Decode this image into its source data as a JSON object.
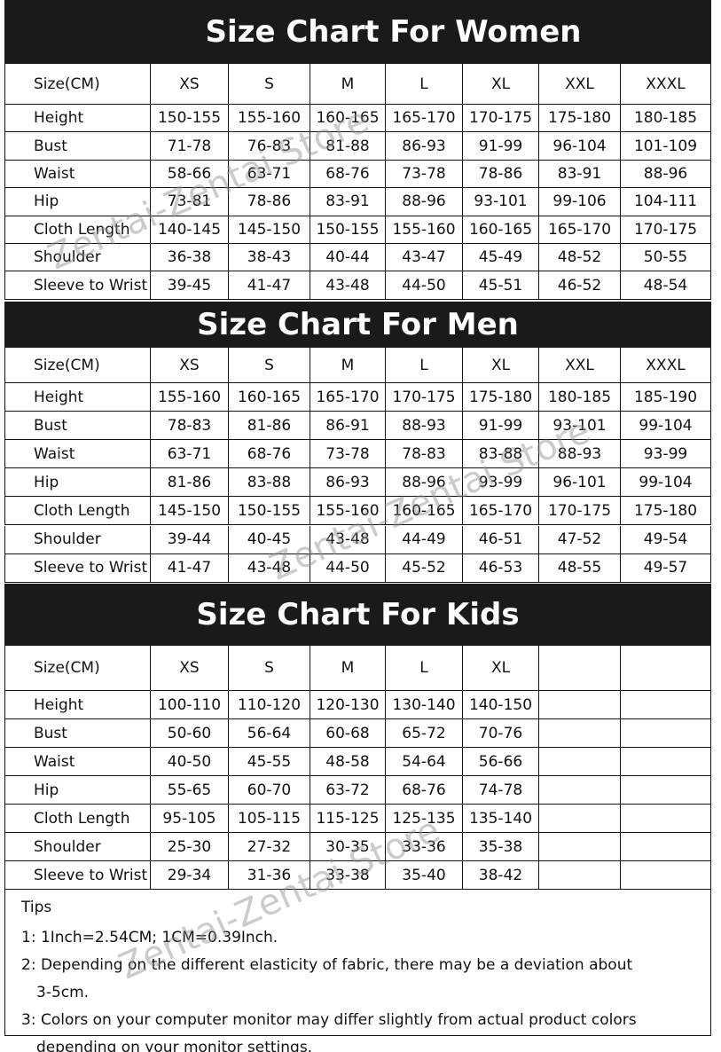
{
  "women": {
    "title": "Size Chart For Women",
    "header": [
      "Size(CM)",
      "XS",
      "S",
      "M",
      "L",
      "XL",
      "XXL",
      "XXXL"
    ],
    "rows": [
      [
        "Height",
        "150-155",
        "155-160",
        "160-165",
        "165-170",
        "170-175",
        "175-180",
        "180-185"
      ],
      [
        "Bust",
        "71-78",
        "76-83",
        "81-88",
        "86-93",
        "91-99",
        "96-104",
        "101-109"
      ],
      [
        "Waist",
        "58-66",
        "63-71",
        "68-76",
        "73-78",
        "78-86",
        "83-91",
        "88-96"
      ],
      [
        "Hip",
        "73-81",
        "78-86",
        "83-91",
        "88-96",
        "93-101",
        "99-106",
        "104-111"
      ],
      [
        "Cloth Length",
        "140-145",
        "145-150",
        "150-155",
        "155-160",
        "160-165",
        "165-170",
        "170-175"
      ],
      [
        "Shoulder",
        "36-38",
        "38-43",
        "40-44",
        "43-47",
        "45-49",
        "48-52",
        "50-55"
      ],
      [
        "Sleeve to Wrist",
        "39-45",
        "41-47",
        "43-48",
        "44-50",
        "45-51",
        "46-52",
        "48-54"
      ]
    ]
  },
  "men": {
    "title": "Size Chart For Men",
    "header": [
      "Size(CM)",
      "XS",
      "S",
      "M",
      "L",
      "XL",
      "XXL",
      "XXXL"
    ],
    "rows": [
      [
        "Height",
        "155-160",
        "160-165",
        "165-170",
        "170-175",
        "175-180",
        "180-185",
        "185-190"
      ],
      [
        "Bust",
        "78-83",
        "81-86",
        "86-91",
        "88-93",
        "91-99",
        "93-101",
        "99-104"
      ],
      [
        "Waist",
        "63-71",
        "68-76",
        "73-78",
        "78-83",
        "83-88",
        "88-93",
        "93-99"
      ],
      [
        "Hip",
        "81-86",
        "83-88",
        "86-93",
        "88-96",
        "93-99",
        "96-101",
        "99-104"
      ],
      [
        "Cloth Length",
        "145-150",
        "150-155",
        "155-160",
        "160-165",
        "165-170",
        "170-175",
        "175-180"
      ],
      [
        "Shoulder",
        "39-44",
        "40-45",
        "43-48",
        "44-49",
        "46-51",
        "47-52",
        "49-54"
      ],
      [
        "Sleeve to Wrist",
        "41-47",
        "43-48",
        "44-50",
        "45-52",
        "46-53",
        "48-55",
        "49-57"
      ]
    ]
  },
  "kids": {
    "title": "Size Chart For Kids",
    "header": [
      "Size(CM)",
      "XS",
      "S",
      "M",
      "L",
      "XL"
    ],
    "rows": [
      [
        "Height",
        "100-110",
        "110-120",
        "120-130",
        "130-140",
        "140-150"
      ],
      [
        "Bust",
        "50-60",
        "56-64",
        "60-68",
        "65-72",
        "70-76"
      ],
      [
        "Waist",
        "40-50",
        "45-55",
        "48-58",
        "54-64",
        "56-66"
      ],
      [
        "Hip",
        "55-65",
        "60-70",
        "63-72",
        "68-76",
        "74-78"
      ],
      [
        "Cloth Length",
        "95-105",
        "105-115",
        "115-125",
        "125-135",
        "135-140"
      ],
      [
        "Shoulder",
        "25-30",
        "27-32",
        "30-35",
        "33-36",
        "35-38"
      ],
      [
        "Sleeve to Wrist",
        "29-34",
        "31-36",
        "33-38",
        "35-40",
        "38-42"
      ]
    ]
  },
  "tips": {
    "title": "Tips",
    "items": [
      "1: 1Inch=2.54CM; 1CM=0.39Inch.",
      "2: Depending on the different elasticity of fabric, there may be a deviation about 3-5cm.",
      "3: Colors on your computer monitor may differ slightly from actual product colors depending on your monitor settings."
    ]
  },
  "watermarks": [
    "Zentai-Zentai Store",
    "Zentai-Zentai Store",
    "Zentai-Zentai Store"
  ]
}
